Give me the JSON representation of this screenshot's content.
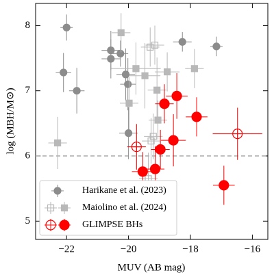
{
  "chart_data": {
    "type": "scatter",
    "xlabel": "MUV (AB mag)",
    "ylabel": "log (MBH/M⊙)",
    "xlim": [
      -23,
      -15.5
    ],
    "ylim": [
      4.72,
      8.34
    ],
    "xticks": [
      {
        "value": -22,
        "label": "−22"
      },
      {
        "value": -20,
        "label": "−20"
      },
      {
        "value": -18,
        "label": "−18"
      },
      {
        "value": -16,
        "label": "−16"
      }
    ],
    "yticks": [
      5,
      6,
      7,
      8
    ],
    "hline": 6,
    "legend": "lower left",
    "series": [
      {
        "name": "Harikane et al. (2023)",
        "color": "#8c8c8c",
        "marker": "circle",
        "x": [
          -22.0,
          -22.1,
          -21.67,
          -20.57,
          -20.57,
          -20.26,
          -20.09,
          -20.02,
          -18.26,
          -17.16,
          -20.0
        ],
        "values": [
          7.97,
          7.28,
          7.0,
          7.62,
          7.49,
          7.57,
          7.25,
          7.1,
          7.75,
          7.68,
          6.35
        ],
        "xerr": [
          0.2,
          0.25,
          0.25,
          0.3,
          0.3,
          0.25,
          0.3,
          0.25,
          0.3,
          0.2,
          0.3
        ],
        "yerr": [
          0.2,
          0.3,
          0.35,
          0.3,
          0.3,
          0.2,
          0.4,
          0.4,
          0.15,
          0.15,
          0.4
        ],
        "filled": [
          true,
          true,
          true,
          true,
          true,
          true,
          true,
          true,
          true,
          true,
          true
        ]
      },
      {
        "name": "Maiolino et al. (2024)",
        "color": "#b8b8b8",
        "marker": "square",
        "x": [
          -20.24,
          -19.76,
          -19.47,
          -19.98,
          -18.75,
          -19.08,
          -19.05,
          -22.29,
          -17.87,
          -19.3,
          -19.15,
          -19.27,
          -19.36,
          -19.2
        ],
        "values": [
          7.89,
          7.34,
          7.23,
          6.81,
          7.29,
          7.01,
          6.55,
          6.2,
          7.34,
          7.67,
          7.7,
          6.23,
          5.65,
          6.3
        ],
        "xerr": [
          0.3,
          0.8,
          0.5,
          0.3,
          0.4,
          0.3,
          0.3,
          0.3,
          0.3,
          0.3,
          0.3,
          0.3,
          0.3,
          0.3
        ],
        "yerr": [
          0.3,
          0.4,
          0.5,
          0.4,
          0.3,
          0.5,
          0.3,
          0.4,
          0.3,
          0.3,
          0.3,
          0.35,
          0.4,
          0.35
        ],
        "filled": [
          true,
          true,
          true,
          true,
          true,
          true,
          true,
          true,
          true,
          false,
          false,
          false,
          false,
          false
        ]
      },
      {
        "name": "GLIMPSE BHs",
        "color": "#ff0000",
        "marker": "circle",
        "x": [
          -18.84,
          -18.44,
          -17.8,
          -18.55,
          -18.97,
          -19.14,
          -19.54,
          -16.92,
          -19.74,
          -16.48
        ],
        "values": [
          6.8,
          6.92,
          6.6,
          6.24,
          6.1,
          5.8,
          5.76,
          5.55,
          6.14,
          6.34
        ],
        "xerr": [
          0.3,
          0.35,
          0.35,
          0.4,
          0.3,
          0.3,
          0.35,
          0.35,
          0.3,
          0.8
        ],
        "yerr": [
          0.3,
          0.35,
          0.3,
          0.4,
          0.3,
          0.35,
          0.3,
          0.3,
          0.35,
          0.4
        ],
        "filled": [
          true,
          true,
          true,
          true,
          true,
          true,
          true,
          true,
          false,
          false
        ]
      }
    ]
  }
}
